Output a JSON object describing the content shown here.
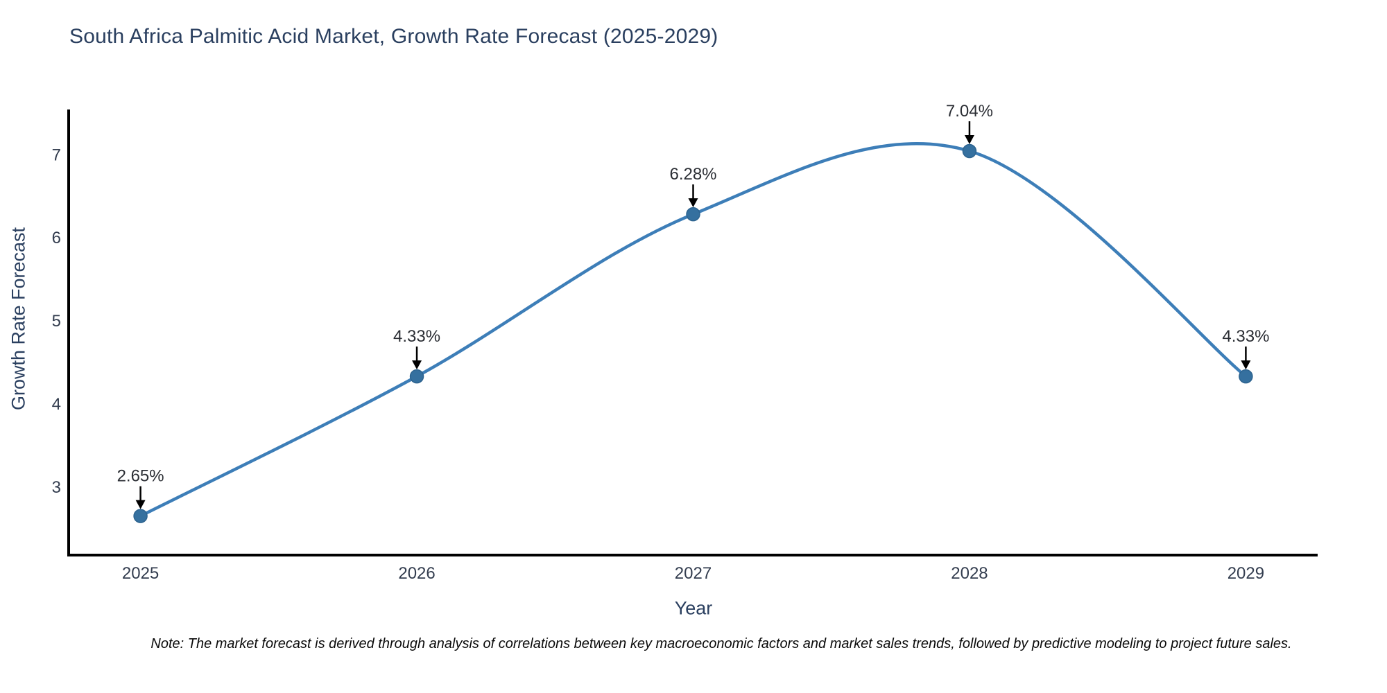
{
  "chart_data": {
    "type": "line",
    "title": "South Africa Palmitic Acid Market, Growth Rate Forecast (2025-2029)",
    "xlabel": "Year",
    "ylabel": "Growth Rate Forecast",
    "categories": [
      2025,
      2026,
      2027,
      2028,
      2029
    ],
    "values": [
      2.65,
      4.33,
      6.28,
      7.04,
      4.33
    ],
    "point_labels": [
      "2.65%",
      "4.33%",
      "6.28%",
      "7.04%",
      "4.33%"
    ],
    "yticks": [
      3,
      4,
      5,
      6,
      7
    ],
    "xlim": [
      2024.74,
      2029.26
    ],
    "ylim": [
      2.18,
      7.54
    ],
    "grid": false,
    "legend": "none",
    "line_shape": "spline",
    "colors": {
      "line": "#3d7eb8",
      "marker": "#35709f",
      "marker_edge": "#2d638f",
      "axis": "#000000",
      "arrow": "#000000",
      "title_text": "#2a3f5f",
      "tick_text": "#333d4f",
      "annotation_text": "#2b2e34"
    }
  },
  "footnote": {
    "text": "Note: The market forecast is derived through analysis of correlations between key macroeconomic factors and market sales trends, followed by predictive modeling to project future sales."
  }
}
